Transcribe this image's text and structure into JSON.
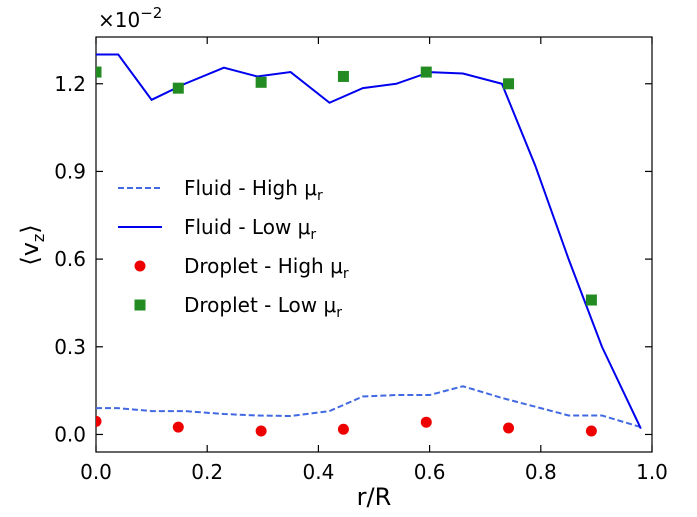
{
  "chart_data": {
    "type": "line",
    "xlabel": "r/R",
    "ylabel": "⟨v",
    "ylabel_sub": "z",
    "ylabel_close": "⟩",
    "y_scale_label": "×10",
    "y_scale_exp": "−2",
    "xlim": [
      0.0,
      1.0
    ],
    "ylim": [
      -0.06,
      1.36
    ],
    "xticks": [
      0.0,
      0.2,
      0.4,
      0.6,
      0.8,
      1.0
    ],
    "xtick_labels": [
      "0.0",
      "0.2",
      "0.4",
      "0.6",
      "0.8",
      "1.0"
    ],
    "yticks": [
      0.0,
      0.3,
      0.6,
      0.9,
      1.2
    ],
    "ytick_labels": [
      "0.0",
      "0.3",
      "0.6",
      "0.9",
      "1.2"
    ],
    "grid": false,
    "legend_position": "center-left",
    "series": [
      {
        "name": "Fluid - High μ",
        "name_sub": "r",
        "kind": "line",
        "style": "dashed",
        "color": "#4169e1",
        "x": [
          0.0,
          0.04,
          0.1,
          0.16,
          0.23,
          0.29,
          0.35,
          0.42,
          0.48,
          0.54,
          0.6,
          0.66,
          0.73,
          0.79,
          0.85,
          0.91,
          0.98
        ],
        "y": [
          0.09,
          0.09,
          0.08,
          0.08,
          0.07,
          0.065,
          0.063,
          0.08,
          0.13,
          0.135,
          0.135,
          0.165,
          0.125,
          0.095,
          0.065,
          0.065,
          0.025
        ]
      },
      {
        "name": "Fluid - Low μ",
        "name_sub": "r",
        "kind": "line",
        "style": "solid",
        "color": "#0000ee",
        "x": [
          0.0,
          0.04,
          0.1,
          0.16,
          0.23,
          0.29,
          0.35,
          0.42,
          0.48,
          0.54,
          0.6,
          0.66,
          0.73,
          0.79,
          0.85,
          0.91,
          0.98
        ],
        "y": [
          1.3,
          1.3,
          1.145,
          1.2,
          1.255,
          1.225,
          1.24,
          1.135,
          1.185,
          1.2,
          1.24,
          1.235,
          1.2,
          0.92,
          0.6,
          0.3,
          0.02
        ]
      },
      {
        "name": "Droplet - High μ",
        "name_sub": "r",
        "kind": "scatter",
        "marker": "circle",
        "color": "#ee0000",
        "x": [
          0.0,
          0.148,
          0.297,
          0.445,
          0.594,
          0.742,
          0.891
        ],
        "y": [
          0.045,
          0.025,
          0.012,
          0.018,
          0.042,
          0.022,
          0.012
        ]
      },
      {
        "name": "Droplet - Low μ",
        "name_sub": "r",
        "kind": "scatter",
        "marker": "square",
        "color": "#228b22",
        "x": [
          0.0,
          0.148,
          0.297,
          0.445,
          0.594,
          0.742,
          0.891
        ],
        "y": [
          1.24,
          1.185,
          1.205,
          1.225,
          1.24,
          1.2,
          0.46
        ]
      }
    ]
  }
}
